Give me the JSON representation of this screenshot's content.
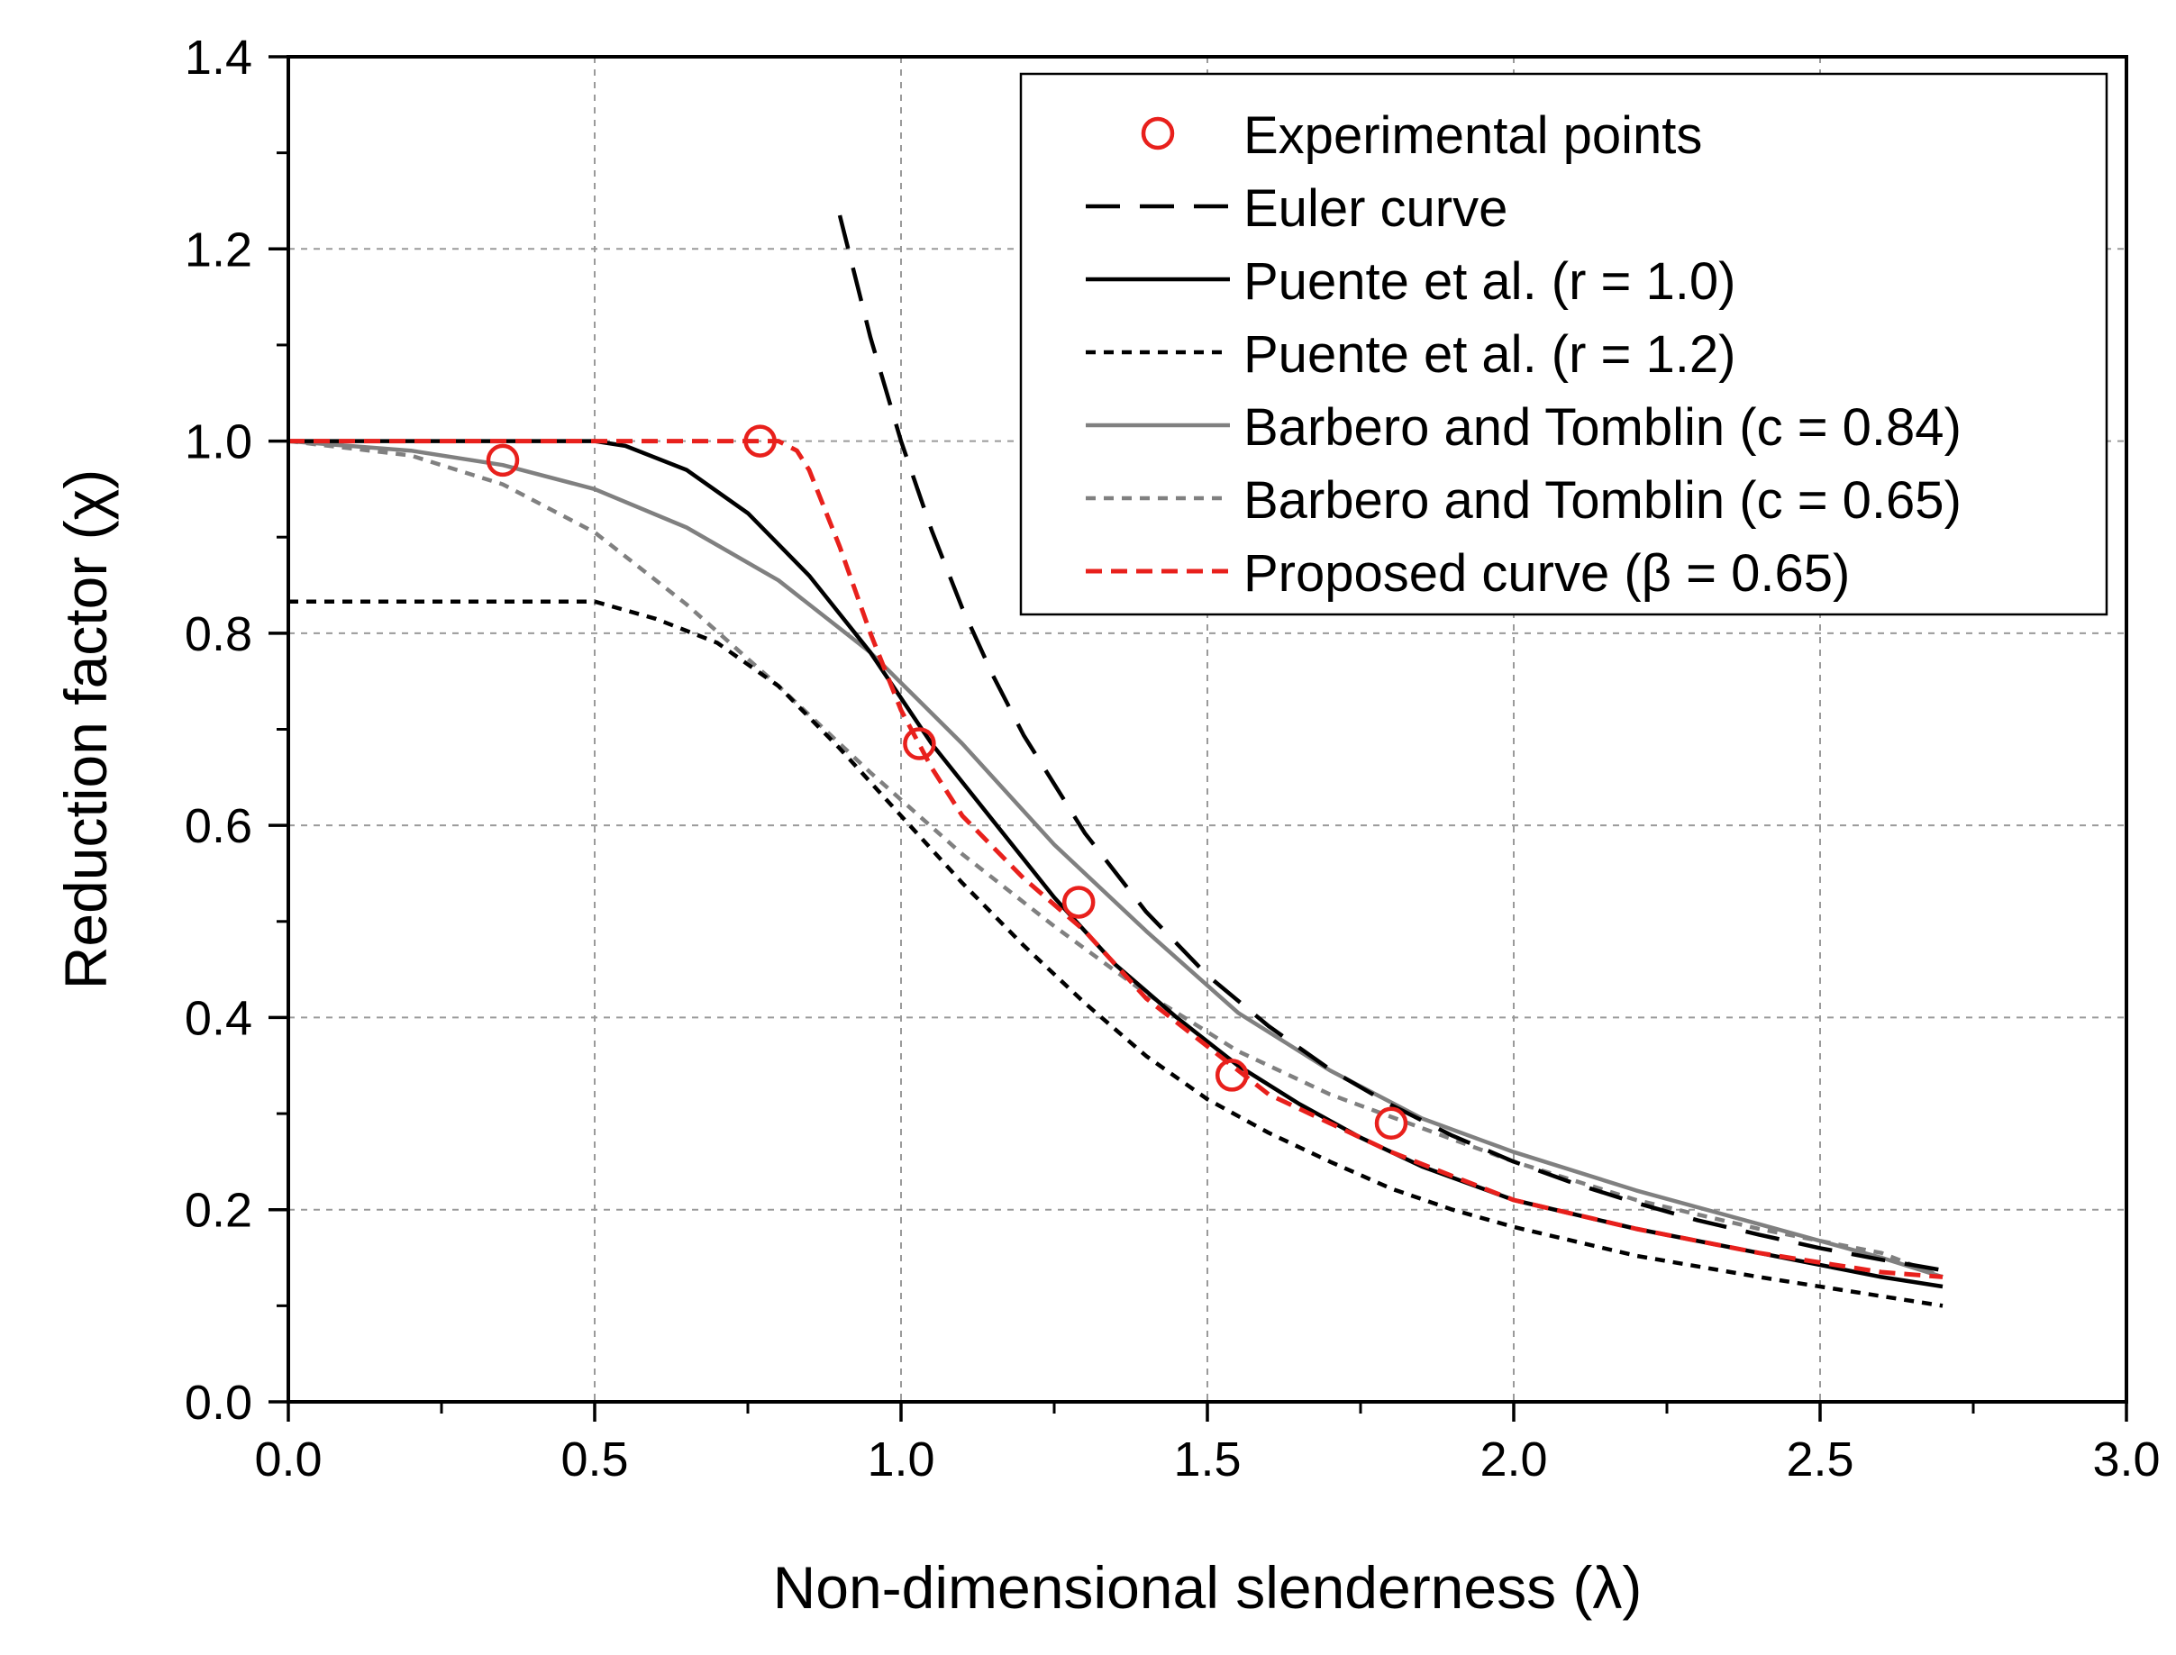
{
  "chart_data": {
    "type": "line",
    "title": "",
    "xlabel": "Non-dimensional slenderness (λ)",
    "ylabel": "Reduction factor (χ)",
    "xlim": [
      0.0,
      3.0
    ],
    "ylim": [
      0.0,
      1.4
    ],
    "xticks": [
      0.0,
      0.5,
      1.0,
      1.5,
      2.0,
      2.5,
      3.0
    ],
    "yticks": [
      0.0,
      0.2,
      0.4,
      0.6,
      0.8,
      1.0,
      1.2,
      1.4
    ],
    "xtick_labels": [
      "0.0",
      "0.5",
      "1.0",
      "1.5",
      "2.0",
      "2.5",
      "3.0"
    ],
    "ytick_labels": [
      "0.0",
      "0.2",
      "0.4",
      "0.6",
      "0.8",
      "1.0",
      "1.2",
      "1.4"
    ],
    "grid": true,
    "legend_position": "top-right",
    "series": [
      {
        "name": "Experimental points",
        "style": "markers",
        "color": "#e8201c",
        "x": [
          0.35,
          0.77,
          1.03,
          1.29,
          1.54,
          1.8
        ],
        "y": [
          0.98,
          1.0,
          0.685,
          0.52,
          0.34,
          0.29
        ]
      },
      {
        "name": "Euler curve",
        "style": "long-dash",
        "color": "#000000",
        "x": [
          0.9,
          0.95,
          1.0,
          1.05,
          1.1,
          1.15,
          1.2,
          1.3,
          1.4,
          1.5,
          1.6,
          1.7,
          1.8,
          1.9,
          2.0,
          2.1,
          2.2,
          2.3,
          2.4,
          2.5,
          2.6,
          2.7
        ],
        "y": [
          1.235,
          1.108,
          1.0,
          0.907,
          0.826,
          0.756,
          0.694,
          0.592,
          0.51,
          0.444,
          0.391,
          0.346,
          0.309,
          0.277,
          0.25,
          0.227,
          0.207,
          0.189,
          0.174,
          0.16,
          0.148,
          0.137
        ]
      },
      {
        "name": "Puente et al. (r = 1.0)",
        "style": "solid",
        "color": "#000000",
        "x": [
          0.0,
          0.5,
          0.55,
          0.65,
          0.75,
          0.85,
          0.95,
          1.05,
          1.15,
          1.25,
          1.35,
          1.45,
          1.55,
          1.65,
          1.75,
          1.85,
          2.0,
          2.2,
          2.4,
          2.6,
          2.7
        ],
        "y": [
          1.0,
          1.0,
          0.995,
          0.97,
          0.925,
          0.86,
          0.78,
          0.685,
          0.605,
          0.525,
          0.455,
          0.4,
          0.35,
          0.31,
          0.275,
          0.245,
          0.21,
          0.18,
          0.155,
          0.13,
          0.12
        ]
      },
      {
        "name": "Puente et al. (r = 1.2)",
        "style": "short-dash",
        "color": "#000000",
        "x": [
          0.0,
          0.5,
          0.6,
          0.7,
          0.8,
          0.9,
          1.0,
          1.1,
          1.2,
          1.3,
          1.4,
          1.5,
          1.6,
          1.7,
          1.8,
          1.9,
          2.0,
          2.2,
          2.4,
          2.6,
          2.7
        ],
        "y": [
          0.833,
          0.833,
          0.815,
          0.79,
          0.745,
          0.68,
          0.61,
          0.54,
          0.475,
          0.415,
          0.36,
          0.315,
          0.28,
          0.25,
          0.222,
          0.2,
          0.182,
          0.152,
          0.13,
          0.11,
          0.1
        ]
      },
      {
        "name": "Barbero and Tomblin (c = 0.84)",
        "style": "solid",
        "color": "#808080",
        "x": [
          0.0,
          0.2,
          0.35,
          0.5,
          0.65,
          0.8,
          0.95,
          1.1,
          1.25,
          1.4,
          1.55,
          1.7,
          1.85,
          2.0,
          2.2,
          2.4,
          2.6,
          2.7
        ],
        "y": [
          1.0,
          0.99,
          0.975,
          0.95,
          0.91,
          0.855,
          0.78,
          0.685,
          0.58,
          0.49,
          0.405,
          0.345,
          0.295,
          0.26,
          0.22,
          0.185,
          0.15,
          0.13
        ]
      },
      {
        "name": "Barbero and Tomblin (c = 0.65)",
        "style": "short-dash",
        "color": "#808080",
        "x": [
          0.0,
          0.2,
          0.35,
          0.5,
          0.65,
          0.8,
          0.95,
          1.1,
          1.25,
          1.4,
          1.55,
          1.7,
          1.85,
          2.0,
          2.2,
          2.4,
          2.6,
          2.7
        ],
        "y": [
          1.0,
          0.985,
          0.955,
          0.905,
          0.83,
          0.745,
          0.655,
          0.57,
          0.495,
          0.425,
          0.365,
          0.32,
          0.285,
          0.25,
          0.21,
          0.18,
          0.155,
          0.13
        ]
      },
      {
        "name": "Proposed curve (β = 0.65)",
        "style": "dash",
        "color": "#e8201c",
        "x": [
          0.0,
          0.5,
          0.8,
          0.83,
          0.85,
          0.9,
          0.95,
          1.0,
          1.05,
          1.1,
          1.2,
          1.3,
          1.4,
          1.5,
          1.6,
          1.7,
          1.8,
          1.9,
          2.0,
          2.2,
          2.4,
          2.6,
          2.7
        ],
        "y": [
          1.0,
          1.0,
          1.0,
          0.99,
          0.97,
          0.89,
          0.8,
          0.72,
          0.66,
          0.61,
          0.545,
          0.49,
          0.42,
          0.37,
          0.32,
          0.29,
          0.26,
          0.235,
          0.21,
          0.18,
          0.155,
          0.135,
          0.13
        ]
      }
    ]
  }
}
